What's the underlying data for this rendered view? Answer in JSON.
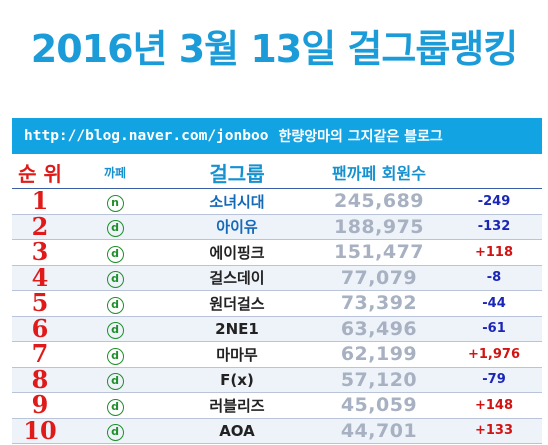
{
  "title": "2016년 3월 13일 걸그룹랭킹",
  "banner": {
    "url": "http://blog.naver.com/jonboo",
    "blog_name": "한량앙마의 그지같은 블로그"
  },
  "headers": {
    "rank": "순 위",
    "cafe": "까페",
    "group": "걸그룹",
    "members": "팬까페 회원수"
  },
  "colors": {
    "title": "#1b9bd8",
    "banner": "#12a3e3",
    "rank": "#e01919",
    "increase": "#d01414",
    "decrease": "#1a26b8"
  },
  "rows": [
    {
      "rank": "1",
      "cafe": "ⓝ",
      "group": "소녀시대",
      "members": "245,689",
      "change": "-249",
      "trend": "down"
    },
    {
      "rank": "2",
      "cafe": "ⓓ",
      "group": "아이유",
      "members": "188,975",
      "change": "-132",
      "trend": "down"
    },
    {
      "rank": "3",
      "cafe": "ⓓ",
      "group": "에이핑크",
      "members": "151,477",
      "change": "+118",
      "trend": "up"
    },
    {
      "rank": "4",
      "cafe": "ⓓ",
      "group": "걸스데이",
      "members": "77,079",
      "change": "-8",
      "trend": "down"
    },
    {
      "rank": "5",
      "cafe": "ⓓ",
      "group": "원더걸스",
      "members": "73,392",
      "change": "-44",
      "trend": "down"
    },
    {
      "rank": "6",
      "cafe": "ⓓ",
      "group": "2NE1",
      "members": "63,496",
      "change": "-61",
      "trend": "down"
    },
    {
      "rank": "7",
      "cafe": "ⓓ",
      "group": "마마무",
      "members": "62,199",
      "change": "+1,976",
      "trend": "up"
    },
    {
      "rank": "8",
      "cafe": "ⓓ",
      "group": "F(x)",
      "members": "57,120",
      "change": "-79",
      "trend": "down"
    },
    {
      "rank": "9",
      "cafe": "ⓓ",
      "group": "러블리즈",
      "members": "45,059",
      "change": "+148",
      "trend": "up"
    },
    {
      "rank": "10",
      "cafe": "ⓓ",
      "group": "AOA",
      "members": "44,701",
      "change": "+133",
      "trend": "up"
    }
  ]
}
